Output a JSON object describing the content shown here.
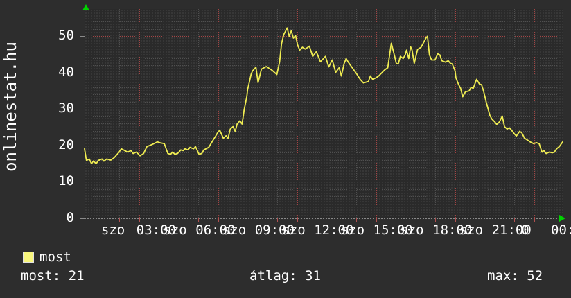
{
  "watermark": "onlinestat.hu",
  "legend": {
    "series_label": "most",
    "swatch_color": "#f8f67c"
  },
  "stats": {
    "current": "most: 21",
    "average": "átlag: 31",
    "max": "max: 52"
  },
  "colors": {
    "background": "#2d2d2d",
    "plot_background": "#2a2a2a",
    "mesh_dot": "#3b3b3b",
    "grid_minor": "#505050",
    "grid_major": "#a34545",
    "axis": "#8a8a8a",
    "tick_red": "#b05050",
    "text": "#ffffff",
    "series_yellow": "#f0ed52",
    "arrow_green": "#00d400"
  },
  "chart_data": {
    "type": "line",
    "title": "",
    "xlabel": "",
    "ylabel": "",
    "legend_position": "bottom-left",
    "grid": true,
    "x_axis": {
      "unit": "hours",
      "min": -0.77,
      "max": 23.45,
      "hour_px_rule": "red gridline every 2 hours, gray every odd hour, labels every 3 hours"
    },
    "y_axis": {
      "min": 0,
      "max": 57.5,
      "major_ticks": [
        0,
        10,
        20,
        30,
        40,
        50
      ],
      "minor_step": 2
    },
    "y_labels": [
      {
        "v": 0,
        "text": "0"
      },
      {
        "v": 10,
        "text": "10"
      },
      {
        "v": 20,
        "text": "20"
      },
      {
        "v": 30,
        "text": "30"
      },
      {
        "v": 40,
        "text": "40"
      },
      {
        "v": 50,
        "text": "50"
      }
    ],
    "x_labels": [
      {
        "t": 0,
        "text": "szo",
        "align": "left",
        "dx": 2
      },
      {
        "t": 3,
        "text": "03:00",
        "align": "center",
        "dx": -4
      },
      {
        "t": 3,
        "text": "szo",
        "align": "left",
        "dx": 6
      },
      {
        "t": 6,
        "text": "06:00",
        "align": "center",
        "dx": -4
      },
      {
        "t": 6,
        "text": "szo",
        "align": "left",
        "dx": 6
      },
      {
        "t": 9,
        "text": "09:00",
        "align": "center",
        "dx": -4
      },
      {
        "t": 9,
        "text": "szo",
        "align": "left",
        "dx": 6
      },
      {
        "t": 12,
        "text": "12:00",
        "align": "center",
        "dx": -4
      },
      {
        "t": 12,
        "text": "szo",
        "align": "left",
        "dx": 6
      },
      {
        "t": 15,
        "text": "15:00",
        "align": "center",
        "dx": -4
      },
      {
        "t": 15,
        "text": "szo",
        "align": "left",
        "dx": 6
      },
      {
        "t": 18,
        "text": "18:00",
        "align": "center",
        "dx": -4
      },
      {
        "t": 18,
        "text": "szo",
        "align": "left",
        "dx": 6
      },
      {
        "t": 21,
        "text": "21:00",
        "align": "center",
        "dx": -4
      },
      {
        "t": 21,
        "text": "0",
        "align": "left",
        "dx": 10
      },
      {
        "t": 24,
        "text": "00:00",
        "align": "center",
        "dx": -4
      }
    ],
    "series": [
      {
        "name": "most",
        "color": "#f0ed52",
        "points": [
          [
            -0.77,
            19.1
          ],
          [
            -0.7,
            16.7
          ],
          [
            -0.67,
            15.9
          ],
          [
            -0.53,
            16.3
          ],
          [
            -0.42,
            15.0
          ],
          [
            -0.32,
            15.7
          ],
          [
            -0.18,
            15.0
          ],
          [
            -0.07,
            15.9
          ],
          [
            0.11,
            16.3
          ],
          [
            0.21,
            15.7
          ],
          [
            0.35,
            16.3
          ],
          [
            0.56,
            16.0
          ],
          [
            0.74,
            16.7
          ],
          [
            0.98,
            18.2
          ],
          [
            1.09,
            19.1
          ],
          [
            1.27,
            18.6
          ],
          [
            1.41,
            18.2
          ],
          [
            1.58,
            18.6
          ],
          [
            1.69,
            17.8
          ],
          [
            1.86,
            18.2
          ],
          [
            2.04,
            17.2
          ],
          [
            2.22,
            17.8
          ],
          [
            2.39,
            19.7
          ],
          [
            2.57,
            20.1
          ],
          [
            2.74,
            20.5
          ],
          [
            2.92,
            21.0
          ],
          [
            3.09,
            20.7
          ],
          [
            3.27,
            20.5
          ],
          [
            3.45,
            17.8
          ],
          [
            3.59,
            17.6
          ],
          [
            3.69,
            18.2
          ],
          [
            3.8,
            17.6
          ],
          [
            3.94,
            17.8
          ],
          [
            4.11,
            18.8
          ],
          [
            4.22,
            18.6
          ],
          [
            4.32,
            19.1
          ],
          [
            4.47,
            18.8
          ],
          [
            4.57,
            19.5
          ],
          [
            4.75,
            19.1
          ],
          [
            4.85,
            19.7
          ],
          [
            5.03,
            17.6
          ],
          [
            5.17,
            17.8
          ],
          [
            5.27,
            18.8
          ],
          [
            5.38,
            19.1
          ],
          [
            5.52,
            19.5
          ],
          [
            5.73,
            21.4
          ],
          [
            5.87,
            22.6
          ],
          [
            5.98,
            23.6
          ],
          [
            6.08,
            24.2
          ],
          [
            6.26,
            22.0
          ],
          [
            6.4,
            22.7
          ],
          [
            6.5,
            22.0
          ],
          [
            6.61,
            24.5
          ],
          [
            6.75,
            25.2
          ],
          [
            6.86,
            23.9
          ],
          [
            6.96,
            25.9
          ],
          [
            7.1,
            26.8
          ],
          [
            7.21,
            25.9
          ],
          [
            7.28,
            28.4
          ],
          [
            7.31,
            29.7
          ],
          [
            7.45,
            33.5
          ],
          [
            7.49,
            35.4
          ],
          [
            7.56,
            37.0
          ],
          [
            7.67,
            39.6
          ],
          [
            7.74,
            40.5
          ],
          [
            7.91,
            41.5
          ],
          [
            8.02,
            37.3
          ],
          [
            8.19,
            41.0
          ],
          [
            8.44,
            41.7
          ],
          [
            8.72,
            40.7
          ],
          [
            8.97,
            39.5
          ],
          [
            9.11,
            43.0
          ],
          [
            9.21,
            48.0
          ],
          [
            9.32,
            50.5
          ],
          [
            9.42,
            51.5
          ],
          [
            9.49,
            52.3
          ],
          [
            9.6,
            50.0
          ],
          [
            9.7,
            51.5
          ],
          [
            9.81,
            49.5
          ],
          [
            9.92,
            50.2
          ],
          [
            10.02,
            47.7
          ],
          [
            10.13,
            46.2
          ],
          [
            10.27,
            47.0
          ],
          [
            10.41,
            46.5
          ],
          [
            10.62,
            47.3
          ],
          [
            10.79,
            44.5
          ],
          [
            10.97,
            45.8
          ],
          [
            11.18,
            43.0
          ],
          [
            11.43,
            44.5
          ],
          [
            11.6,
            41.6
          ],
          [
            11.78,
            43.5
          ],
          [
            11.95,
            40.1
          ],
          [
            12.13,
            41.4
          ],
          [
            12.24,
            39.1
          ],
          [
            12.38,
            42.5
          ],
          [
            12.48,
            43.9
          ],
          [
            12.59,
            42.9
          ],
          [
            12.76,
            41.6
          ],
          [
            13.01,
            39.7
          ],
          [
            13.19,
            38.2
          ],
          [
            13.36,
            37.2
          ],
          [
            13.61,
            37.6
          ],
          [
            13.71,
            39.1
          ],
          [
            13.82,
            38.2
          ],
          [
            13.99,
            38.6
          ],
          [
            14.13,
            39.1
          ],
          [
            14.31,
            40.1
          ],
          [
            14.42,
            40.7
          ],
          [
            14.59,
            41.4
          ],
          [
            14.77,
            48.1
          ],
          [
            14.95,
            44.3
          ],
          [
            15.02,
            42.6
          ],
          [
            15.12,
            42.4
          ],
          [
            15.23,
            44.5
          ],
          [
            15.37,
            43.9
          ],
          [
            15.47,
            44.9
          ],
          [
            15.54,
            46.2
          ],
          [
            15.65,
            43.9
          ],
          [
            15.75,
            47.1
          ],
          [
            15.82,
            46.2
          ],
          [
            15.93,
            42.6
          ],
          [
            16.1,
            46.4
          ],
          [
            16.28,
            47.0
          ],
          [
            16.53,
            49.6
          ],
          [
            16.6,
            50.0
          ],
          [
            16.7,
            44.9
          ],
          [
            16.81,
            43.5
          ],
          [
            16.98,
            43.5
          ],
          [
            17.12,
            45.2
          ],
          [
            17.23,
            44.9
          ],
          [
            17.33,
            43.3
          ],
          [
            17.51,
            42.9
          ],
          [
            17.65,
            43.3
          ],
          [
            17.76,
            42.6
          ],
          [
            17.86,
            42.4
          ],
          [
            18.0,
            40.5
          ],
          [
            18.04,
            38.6
          ],
          [
            18.18,
            36.7
          ],
          [
            18.28,
            35.7
          ],
          [
            18.39,
            33.4
          ],
          [
            18.53,
            34.8
          ],
          [
            18.71,
            35.0
          ],
          [
            18.81,
            36.0
          ],
          [
            18.92,
            35.7
          ],
          [
            19.09,
            38.2
          ],
          [
            19.23,
            36.9
          ],
          [
            19.34,
            36.7
          ],
          [
            19.44,
            35.0
          ],
          [
            19.58,
            31.9
          ],
          [
            19.76,
            28.3
          ],
          [
            19.86,
            27.3
          ],
          [
            20.01,
            26.5
          ],
          [
            20.11,
            25.8
          ],
          [
            20.25,
            26.5
          ],
          [
            20.39,
            28.1
          ],
          [
            20.5,
            25.2
          ],
          [
            20.64,
            24.5
          ],
          [
            20.74,
            24.9
          ],
          [
            20.85,
            24.3
          ],
          [
            20.99,
            23.3
          ],
          [
            21.1,
            22.6
          ],
          [
            21.27,
            23.9
          ],
          [
            21.38,
            23.5
          ],
          [
            21.52,
            22.0
          ],
          [
            21.7,
            21.4
          ],
          [
            21.8,
            21.0
          ],
          [
            21.98,
            20.5
          ],
          [
            22.12,
            20.8
          ],
          [
            22.26,
            20.5
          ],
          [
            22.4,
            18.2
          ],
          [
            22.5,
            18.6
          ],
          [
            22.61,
            17.8
          ],
          [
            22.78,
            18.2
          ],
          [
            22.92,
            18.0
          ],
          [
            23.03,
            18.2
          ],
          [
            23.14,
            19.1
          ],
          [
            23.28,
            19.7
          ],
          [
            23.45,
            21.0
          ]
        ]
      }
    ],
    "summary": {
      "most": 21,
      "atlag": 31,
      "max": 52
    }
  }
}
